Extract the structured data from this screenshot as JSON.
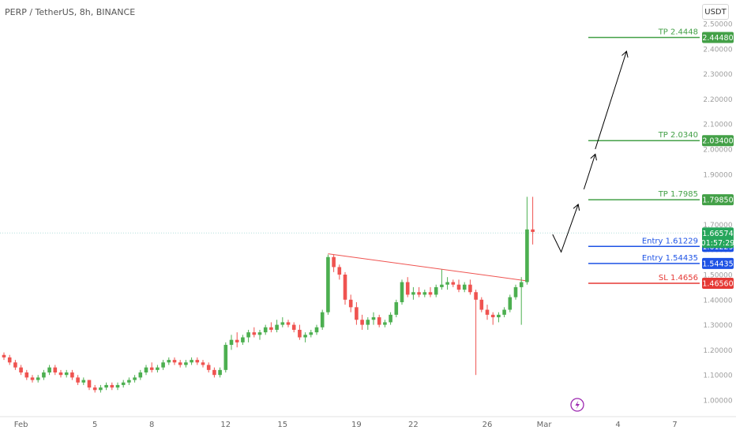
{
  "header": {
    "symbol_title": "PERP / TetherUS, 8h, BINANCE",
    "currency_button": "USDT"
  },
  "colors": {
    "up": "#26a69a",
    "up_body": "#4caf50",
    "down": "#ef5350",
    "tp": "#43a047",
    "entry": "#1e53e5",
    "sl": "#e53935",
    "trend": "#ef5350",
    "arrow": "#000000",
    "last_price_bg": "#26a65b",
    "axis_text": "#666666"
  },
  "chart_data": {
    "type": "candlestick",
    "ylim": [
      0.97,
      2.6
    ],
    "y_ticks": [
      "2.50000",
      "2.40000",
      "2.30000",
      "2.20000",
      "2.10000",
      "2.00000",
      "1.90000",
      "1.80000",
      "1.70000",
      "1.60000",
      "1.50000",
      "1.40000",
      "1.30000",
      "1.20000",
      "1.10000",
      "1.00000"
    ],
    "y_tick_values": [
      2.5,
      2.4,
      2.3,
      2.2,
      2.1,
      2.0,
      1.9,
      1.8,
      1.7,
      1.6,
      1.5,
      1.4,
      1.3,
      1.2,
      1.1,
      1.0
    ],
    "x_ticks": [
      {
        "label": "Feb",
        "index": 3
      },
      {
        "label": "5",
        "index": 16
      },
      {
        "label": "8",
        "index": 26
      },
      {
        "label": "12",
        "index": 39
      },
      {
        "label": "15",
        "index": 49
      },
      {
        "label": "19",
        "index": 62
      },
      {
        "label": "22",
        "index": 72
      },
      {
        "label": "26",
        "index": 85
      },
      {
        "label": "Mar",
        "index": 95
      },
      {
        "label": "4",
        "index": 108
      },
      {
        "label": "7",
        "index": 118
      }
    ],
    "candles": [
      [
        1.18,
        1.19,
        1.16,
        1.17
      ],
      [
        1.17,
        1.18,
        1.14,
        1.15
      ],
      [
        1.15,
        1.16,
        1.12,
        1.13
      ],
      [
        1.13,
        1.14,
        1.1,
        1.11
      ],
      [
        1.11,
        1.12,
        1.08,
        1.09
      ],
      [
        1.09,
        1.1,
        1.07,
        1.08
      ],
      [
        1.08,
        1.1,
        1.07,
        1.09
      ],
      [
        1.09,
        1.12,
        1.08,
        1.11
      ],
      [
        1.11,
        1.14,
        1.1,
        1.13
      ],
      [
        1.13,
        1.14,
        1.1,
        1.11
      ],
      [
        1.11,
        1.12,
        1.09,
        1.1
      ],
      [
        1.1,
        1.12,
        1.09,
        1.11
      ],
      [
        1.11,
        1.12,
        1.08,
        1.09
      ],
      [
        1.09,
        1.1,
        1.06,
        1.07
      ],
      [
        1.07,
        1.09,
        1.06,
        1.08
      ],
      [
        1.08,
        1.08,
        1.04,
        1.05
      ],
      [
        1.05,
        1.06,
        1.03,
        1.04
      ],
      [
        1.04,
        1.06,
        1.03,
        1.05
      ],
      [
        1.05,
        1.07,
        1.04,
        1.06
      ],
      [
        1.06,
        1.07,
        1.04,
        1.05
      ],
      [
        1.05,
        1.07,
        1.04,
        1.06
      ],
      [
        1.06,
        1.08,
        1.05,
        1.07
      ],
      [
        1.07,
        1.09,
        1.06,
        1.08
      ],
      [
        1.08,
        1.1,
        1.07,
        1.09
      ],
      [
        1.09,
        1.12,
        1.08,
        1.11
      ],
      [
        1.11,
        1.14,
        1.1,
        1.13
      ],
      [
        1.13,
        1.15,
        1.11,
        1.12
      ],
      [
        1.12,
        1.14,
        1.11,
        1.13
      ],
      [
        1.13,
        1.16,
        1.12,
        1.15
      ],
      [
        1.15,
        1.17,
        1.14,
        1.16
      ],
      [
        1.16,
        1.17,
        1.14,
        1.15
      ],
      [
        1.15,
        1.16,
        1.13,
        1.14
      ],
      [
        1.14,
        1.16,
        1.13,
        1.15
      ],
      [
        1.15,
        1.17,
        1.14,
        1.16
      ],
      [
        1.16,
        1.17,
        1.14,
        1.15
      ],
      [
        1.15,
        1.16,
        1.13,
        1.14
      ],
      [
        1.14,
        1.15,
        1.11,
        1.12
      ],
      [
        1.12,
        1.13,
        1.09,
        1.1
      ],
      [
        1.1,
        1.13,
        1.09,
        1.12
      ],
      [
        1.12,
        1.23,
        1.11,
        1.22
      ],
      [
        1.22,
        1.26,
        1.2,
        1.24
      ],
      [
        1.24,
        1.27,
        1.21,
        1.23
      ],
      [
        1.23,
        1.26,
        1.22,
        1.25
      ],
      [
        1.25,
        1.28,
        1.23,
        1.27
      ],
      [
        1.27,
        1.29,
        1.25,
        1.26
      ],
      [
        1.26,
        1.28,
        1.24,
        1.27
      ],
      [
        1.27,
        1.3,
        1.26,
        1.29
      ],
      [
        1.29,
        1.31,
        1.27,
        1.28
      ],
      [
        1.28,
        1.32,
        1.27,
        1.3
      ],
      [
        1.3,
        1.33,
        1.29,
        1.31
      ],
      [
        1.31,
        1.32,
        1.29,
        1.3
      ],
      [
        1.3,
        1.31,
        1.27,
        1.28
      ],
      [
        1.28,
        1.3,
        1.24,
        1.25
      ],
      [
        1.25,
        1.27,
        1.23,
        1.26
      ],
      [
        1.26,
        1.28,
        1.25,
        1.27
      ],
      [
        1.27,
        1.3,
        1.26,
        1.29
      ],
      [
        1.29,
        1.36,
        1.28,
        1.35
      ],
      [
        1.35,
        1.58,
        1.34,
        1.57
      ],
      [
        1.57,
        1.58,
        1.51,
        1.53
      ],
      [
        1.53,
        1.54,
        1.48,
        1.5
      ],
      [
        1.5,
        1.51,
        1.38,
        1.4
      ],
      [
        1.4,
        1.42,
        1.35,
        1.37
      ],
      [
        1.37,
        1.39,
        1.3,
        1.32
      ],
      [
        1.32,
        1.34,
        1.28,
        1.3
      ],
      [
        1.3,
        1.33,
        1.28,
        1.32
      ],
      [
        1.32,
        1.35,
        1.3,
        1.33
      ],
      [
        1.33,
        1.34,
        1.29,
        1.3
      ],
      [
        1.3,
        1.32,
        1.29,
        1.31
      ],
      [
        1.31,
        1.35,
        1.3,
        1.34
      ],
      [
        1.34,
        1.4,
        1.33,
        1.39
      ],
      [
        1.39,
        1.48,
        1.38,
        1.47
      ],
      [
        1.47,
        1.49,
        1.41,
        1.42
      ],
      [
        1.42,
        1.45,
        1.4,
        1.43
      ],
      [
        1.43,
        1.45,
        1.41,
        1.42
      ],
      [
        1.42,
        1.44,
        1.41,
        1.43
      ],
      [
        1.43,
        1.45,
        1.41,
        1.42
      ],
      [
        1.42,
        1.46,
        1.41,
        1.45
      ],
      [
        1.45,
        1.52,
        1.44,
        1.46
      ],
      [
        1.46,
        1.49,
        1.44,
        1.47
      ],
      [
        1.47,
        1.48,
        1.45,
        1.46
      ],
      [
        1.46,
        1.48,
        1.43,
        1.44
      ],
      [
        1.44,
        1.47,
        1.43,
        1.46
      ],
      [
        1.46,
        1.48,
        1.42,
        1.43
      ],
      [
        1.43,
        1.44,
        1.1,
        1.4
      ],
      [
        1.4,
        1.41,
        1.35,
        1.36
      ],
      [
        1.36,
        1.38,
        1.32,
        1.34
      ],
      [
        1.34,
        1.35,
        1.3,
        1.33
      ],
      [
        1.33,
        1.35,
        1.31,
        1.34
      ],
      [
        1.34,
        1.37,
        1.33,
        1.36
      ],
      [
        1.36,
        1.42,
        1.35,
        1.41
      ],
      [
        1.41,
        1.46,
        1.4,
        1.45
      ],
      [
        1.45,
        1.49,
        1.3,
        1.47
      ],
      [
        1.47,
        1.81,
        1.46,
        1.68
      ],
      [
        1.68,
        1.81,
        1.62,
        1.67
      ]
    ],
    "trendline": {
      "from": {
        "index": 57,
        "price": 1.583
      },
      "to": {
        "index": 92,
        "price": 1.475
      }
    },
    "levels": [
      {
        "label": "TP 2.4448",
        "price": 2.4448,
        "axis_label": "2.44480",
        "kind": "tp"
      },
      {
        "label": "TP 2.0340",
        "price": 2.034,
        "axis_label": "2.03400",
        "kind": "tp"
      },
      {
        "label": "TP 1.7985",
        "price": 1.7985,
        "axis_label": "1.79850",
        "kind": "tp"
      },
      {
        "label": "Entry 1.61229",
        "price": 1.61229,
        "axis_label": "1.61229",
        "kind": "entry"
      },
      {
        "label": "Entry 1.54435",
        "price": 1.54435,
        "axis_label": "1.54435",
        "kind": "entry"
      },
      {
        "label": "SL 1.4656",
        "price": 1.4656,
        "axis_label": "1.46560",
        "kind": "sl"
      }
    ],
    "last_price": {
      "price": 1.66574,
      "label": "1.66574",
      "countdown": "01:57:29"
    },
    "projection_path": [
      {
        "index": 96.5,
        "price": 1.66
      },
      {
        "index": 98,
        "price": 1.59
      },
      {
        "index": 101,
        "price": 1.78
      }
    ],
    "arrows": [
      {
        "from": {
          "index": 102,
          "price": 1.84
        },
        "to": {
          "index": 104,
          "price": 1.98
        }
      },
      {
        "from": {
          "index": 104,
          "price": 2.0
        },
        "to": {
          "index": 109.5,
          "price": 2.39
        }
      }
    ]
  }
}
